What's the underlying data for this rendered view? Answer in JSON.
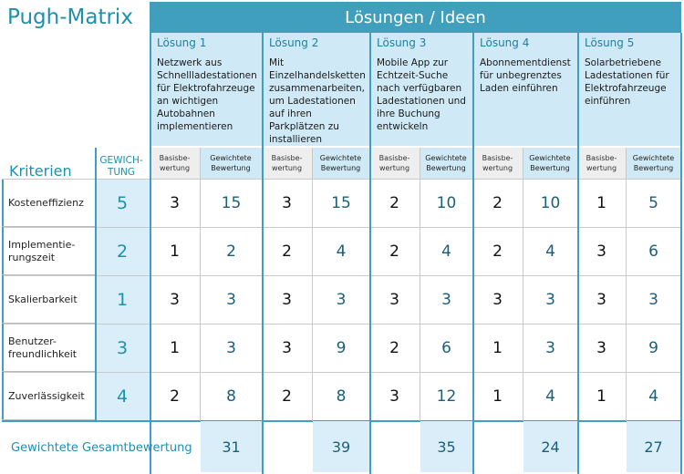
{
  "title": "Pugh-Matrix",
  "header": "Lösungen / Ideen",
  "criteria_label": "Kriterien",
  "weight_label": "GEWICH-TUNG",
  "sub_basis": "Basisbe-wertung",
  "sub_gewichtet": "Gewichtete Bewertung",
  "solutions": [
    {
      "title": "Lösung 1",
      "desc": "Netzwerk aus Schnellladestationen für Elektrofahrzeuge an wichtigen Autobahnen implementieren"
    },
    {
      "title": "Lösung 2",
      "desc": "Mit Einzelhandelsketten zusammenarbeiten, um Ladestationen auf ihren Parkplätzen zu installieren"
    },
    {
      "title": "Lösung 3",
      "desc": "Mobile App zur Echtzeit-Suche nach verfügbaren Ladestationen und ihre Buchung entwickeln"
    },
    {
      "title": "Lösung 4",
      "desc": "Abonnementdienst für unbegrenztes Laden einführen"
    },
    {
      "title": "Lösung 5",
      "desc": "Solarbetriebene Ladestationen für Elektrofahrzeuge einführen"
    }
  ],
  "criteria": [
    {
      "name": "Kosteneffizienz",
      "weight": "5",
      "basis": [
        "3",
        "3",
        "2",
        "2",
        "1"
      ],
      "gewichtet": [
        "15",
        "15",
        "10",
        "10",
        "5"
      ]
    },
    {
      "name": "Implementie-rungszeit",
      "weight": "2",
      "basis": [
        "1",
        "2",
        "2",
        "2",
        "3"
      ],
      "gewichtet": [
        "2",
        "4",
        "4",
        "4",
        "6"
      ]
    },
    {
      "name": "Skalierbarkeit",
      "weight": "1",
      "basis": [
        "3",
        "3",
        "3",
        "3",
        "3"
      ],
      "gewichtet": [
        "3",
        "3",
        "3",
        "3",
        "3"
      ]
    },
    {
      "name": "Benutzer-freundlichkeit",
      "weight": "3",
      "basis": [
        "1",
        "3",
        "2",
        "1",
        "3"
      ],
      "gewichtet": [
        "3",
        "9",
        "6",
        "3",
        "9"
      ]
    },
    {
      "name": "Zuverlässigkeit",
      "weight": "4",
      "basis": [
        "2",
        "2",
        "3",
        "1",
        "1"
      ],
      "gewichtet": [
        "8",
        "8",
        "12",
        "4",
        "4"
      ]
    }
  ],
  "total_label": "Gewichtete Gesamtbewertung",
  "totals": [
    "31",
    "39",
    "35",
    "24",
    "27"
  ]
}
